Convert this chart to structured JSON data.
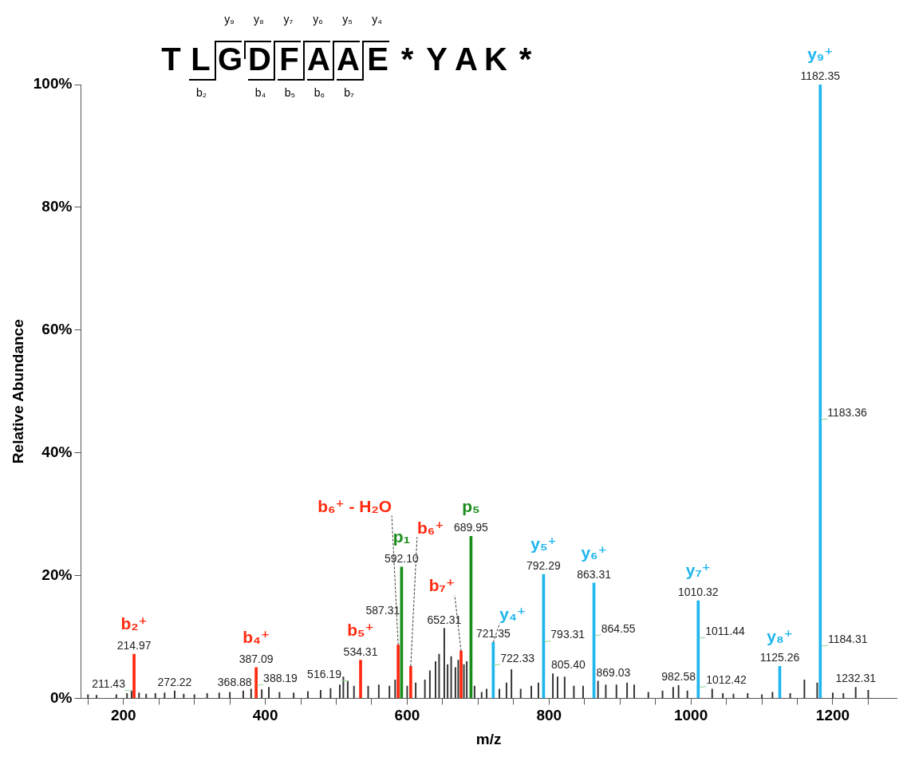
{
  "chart_data": {
    "type": "bar",
    "title": "T L G D F A A E * Y A K *",
    "xlabel": "m/z",
    "ylabel": "Relative Abundance",
    "xlim": [
      140,
      1290
    ],
    "xticks": [
      {
        "value": 150,
        "label": null
      },
      200,
      {
        "value": 250,
        "label": null
      },
      {
        "value": 300,
        "label": null
      },
      {
        "value": 350,
        "label": null
      },
      400,
      {
        "value": 450,
        "label": null
      },
      {
        "value": 500,
        "label": null
      },
      {
        "value": 550,
        "label": null
      },
      600,
      {
        "value": 650,
        "label": null
      },
      {
        "value": 700,
        "label": null
      },
      {
        "value": 750,
        "label": null
      },
      800,
      {
        "value": 850,
        "label": null
      },
      {
        "value": 900,
        "label": null
      },
      {
        "value": 950,
        "label": null
      },
      1000,
      {
        "value": 1050,
        "label": null
      },
      {
        "value": 1100,
        "label": null
      },
      {
        "value": 1150,
        "label": null
      },
      1200,
      {
        "value": 1250,
        "label": null
      }
    ],
    "ylim": [
      0,
      100
    ],
    "yticks": [
      {
        "value": 0,
        "label": "0%"
      },
      {
        "value": 20,
        "label": "20%"
      },
      {
        "value": 40,
        "label": "40%"
      },
      {
        "value": 60,
        "label": "60%"
      },
      {
        "value": 80,
        "label": "80%"
      },
      {
        "value": 100,
        "label": "100%"
      }
    ],
    "series": [
      {
        "color": "#333333",
        "x": [
          150,
          162,
          175,
          190,
          205,
          211.43,
          222,
          232,
          245,
          258,
          272.22,
          285,
          300,
          318,
          335,
          350,
          368.88,
          380,
          395,
          405,
          420,
          440,
          460,
          478,
          492,
          505,
          510,
          516.19,
          525,
          545,
          560,
          575,
          583,
          600,
          612,
          625,
          632,
          640,
          645,
          652.31,
          657,
          662,
          668,
          672,
          680,
          684,
          695,
          705,
          712,
          730,
          740,
          747,
          760,
          775,
          785,
          805.4,
          812,
          822,
          835,
          848,
          869.03,
          880,
          895,
          910,
          920,
          940,
          960,
          975,
          982.58,
          995,
          1030,
          1045,
          1060,
          1080,
          1100,
          1115,
          1140,
          1160,
          1178,
          1200,
          1215,
          1232.31,
          1250
        ],
        "values": [
          0.6,
          0.5,
          null,
          0.6,
          0.8,
          1.2,
          0.9,
          0.7,
          0.8,
          0.9,
          1.2,
          0.7,
          0.6,
          0.8,
          0.9,
          1.0,
          1.2,
          1.5,
          1.4,
          1.8,
          1.0,
          0.9,
          1.1,
          1.3,
          1.6,
          2.2,
          3.5,
          2.8,
          2.0,
          2.0,
          2.2,
          2.0,
          3.0,
          2.0,
          2.5,
          3.0,
          4.5,
          6.0,
          7.2,
          11.4,
          5.5,
          6.8,
          5.0,
          6.2,
          5.5,
          6.0,
          2.0,
          1.0,
          1.5,
          1.5,
          2.5,
          4.7,
          1.5,
          2.0,
          2.5,
          4.0,
          3.5,
          3.5,
          2.0,
          2.0,
          2.8,
          2.2,
          2.2,
          2.5,
          2.2,
          1.0,
          1.2,
          1.8,
          2.1,
          1.2,
          1.5,
          0.8,
          0.7,
          0.8,
          0.6,
          1.0,
          0.8,
          3.0,
          2.5,
          0.9,
          0.8,
          1.8,
          1.3
        ]
      },
      {
        "name": "b₂⁺",
        "color": "#ff2a10",
        "x": [
          214.97
        ],
        "values": [
          7.2
        ]
      },
      {
        "name": "b₄⁺",
        "color": "#ff2a10",
        "x": [
          387.09
        ],
        "values": [
          5.0
        ]
      },
      {
        "name": "b₅⁺",
        "color": "#ff2a10",
        "x": [
          534.31
        ],
        "values": [
          6.2
        ]
      },
      {
        "name": "b₆⁺ - H₂O",
        "color": "#ff2a10",
        "x": [
          587.31
        ],
        "values": [
          8.7
        ]
      },
      {
        "name": "b₆⁺",
        "color": "#ff2a10",
        "x": [
          605
        ],
        "values": [
          5.2
        ]
      },
      {
        "name": "b₇⁺",
        "color": "#ff2a10",
        "x": [
          676
        ],
        "values": [
          7.7
        ]
      },
      {
        "name": "p₁",
        "color": "#1a8c1a",
        "x": [
          592.1
        ],
        "values": [
          21.4
        ]
      },
      {
        "name": "p₅",
        "color": "#1a8c1a",
        "x": [
          689.95
        ],
        "values": [
          26.4
        ]
      },
      {
        "name": "y₄⁺",
        "color": "#1fb6ee",
        "x": [
          721.35
        ],
        "values": [
          9.1
        ]
      },
      {
        "name": "y₅⁺",
        "color": "#1fb6ee",
        "x": [
          792.29
        ],
        "values": [
          20.2
        ]
      },
      {
        "name": "y₆⁺",
        "color": "#1fb6ee",
        "x": [
          863.31
        ],
        "values": [
          18.8
        ]
      },
      {
        "name": "y₇⁺",
        "color": "#1fb6ee",
        "x": [
          1010.32
        ],
        "values": [
          15.9
        ]
      },
      {
        "name": "y₈⁺",
        "color": "#1fb6ee",
        "x": [
          1125.26
        ],
        "values": [
          5.2
        ]
      },
      {
        "name": "y₉⁺",
        "color": "#1fb6ee",
        "x": [
          1182.35
        ],
        "values": [
          100
        ]
      }
    ],
    "annotations": [
      "y₉",
      "y₈",
      "y₇",
      "y₆",
      "y₅",
      "y₄",
      "b₂",
      "b₄",
      "b₅",
      "b₆",
      "b₇",
      {
        "text": "1182.35",
        "x": 1182.35,
        "y": 100
      },
      {
        "text": "689.95",
        "x": 689.95,
        "y": 26.4
      },
      {
        "text": "592.10",
        "x": 592.1,
        "y": 21.4
      },
      {
        "text": "792.29",
        "x": 792.29,
        "y": 20.2
      },
      {
        "text": "863.31",
        "x": 863.31,
        "y": 18.8
      },
      {
        "text": "1010.32",
        "x": 1010.32,
        "y": 15.9
      },
      {
        "text": "652.31",
        "x": 652.31,
        "y": 11.4
      },
      {
        "text": "721.35",
        "x": 721.35,
        "y": 9.1
      },
      {
        "text": "214.97",
        "x": 214.97,
        "y": 7.2
      },
      {
        "text": "387.09",
        "x": 387.09,
        "y": 5.0
      },
      {
        "text": "534.31",
        "x": 534.31,
        "y": 6.2
      },
      {
        "text": "1125.26",
        "x": 1125.26,
        "y": 5.2
      },
      {
        "text": "272.22",
        "x": 272.22,
        "y": 1.2
      },
      {
        "text": "1232.31",
        "x": 1232.31,
        "y": 1.8
      },
      {
        "text": "587.31",
        "x": 587.31,
        "y": 8.7
      },
      {
        "text": "1183.36",
        "x": 1183.36,
        "y": 45.4
      },
      {
        "text": "1184.31",
        "x": 1184.31,
        "y": 8.5
      },
      {
        "text": "1011.44",
        "x": 1011.44,
        "y": 9.8
      },
      {
        "text": "1012.42",
        "x": 1012.42,
        "y": 1.8
      },
      {
        "text": "864.55",
        "x": 864.55,
        "y": 10.2
      },
      {
        "text": "793.31",
        "x": 793.31,
        "y": 9.2
      },
      {
        "text": "722.33",
        "x": 722.33,
        "y": 5.4
      },
      {
        "text": "805.40",
        "x": 805.4,
        "y": 4.0
      },
      {
        "text": "869.03",
        "x": 869.03,
        "y": 2.8
      },
      {
        "text": "982.58",
        "x": 982.58,
        "y": 2.1
      },
      {
        "text": "516.19",
        "x": 516.19,
        "y": 2.8
      },
      {
        "text": "388.19",
        "x": 388.19,
        "y": 2.1
      },
      {
        "text": "368.88",
        "x": 368.88,
        "y": 1.2
      },
      {
        "text": "211.43",
        "x": 211.43,
        "y": 1.2
      }
    ]
  }
}
